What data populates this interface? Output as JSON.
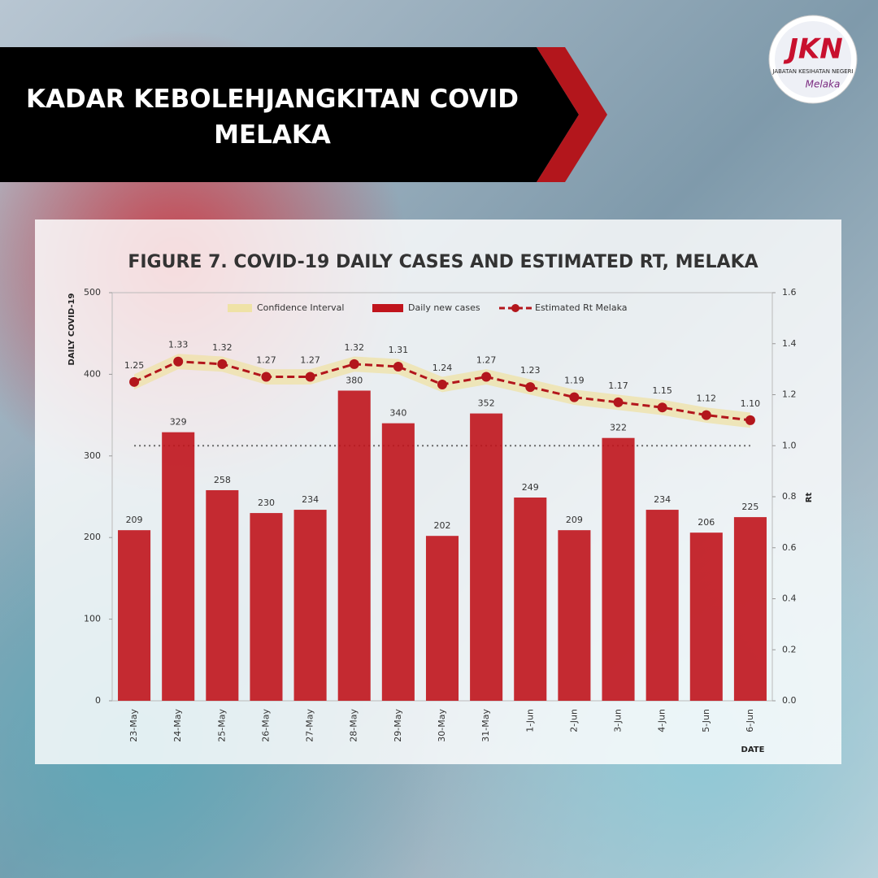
{
  "header": {
    "title": "KADAR KEBOLEHJANGKITAN COVID MELAKA"
  },
  "logo": {
    "mark": "JKN",
    "agency": "JABATAN KESIHATAN NEGERI",
    "state": "Melaka"
  },
  "chart_data": {
    "type": "bar",
    "title": "FIGURE 7. COVID-19 DAILY CASES AND ESTIMATED RT, MELAKA",
    "ylabel": "DAILY COVID-19",
    "y2label": "Rt",
    "xlabel": "DATE",
    "categories": [
      "23-May",
      "24-May",
      "25-May",
      "26-May",
      "27-May",
      "28-May",
      "29-May",
      "30-May",
      "31-May",
      "1-Jun",
      "2-Jun",
      "3-Jun",
      "4-Jun",
      "5-Jun",
      "6-Jun"
    ],
    "series": [
      {
        "name": "Confidence Interval",
        "type": "band",
        "axis": "y2",
        "color": "#efe2a6",
        "lower": [
          1.22,
          1.3,
          1.29,
          1.24,
          1.24,
          1.29,
          1.28,
          1.21,
          1.24,
          1.2,
          1.16,
          1.14,
          1.12,
          1.09,
          1.07
        ],
        "upper": [
          1.28,
          1.36,
          1.35,
          1.3,
          1.3,
          1.35,
          1.34,
          1.27,
          1.3,
          1.26,
          1.22,
          1.2,
          1.18,
          1.15,
          1.13
        ]
      },
      {
        "name": "Daily new cases",
        "type": "bar",
        "color": "#c0141c",
        "values": [
          209,
          329,
          258,
          230,
          234,
          380,
          340,
          202,
          352,
          249,
          209,
          322,
          234,
          206,
          225
        ]
      },
      {
        "name": "Estimated Rt Melaka",
        "type": "line",
        "axis": "y2",
        "color": "#b3161c",
        "values": [
          1.25,
          1.33,
          1.32,
          1.27,
          1.27,
          1.32,
          1.31,
          1.24,
          1.27,
          1.23,
          1.19,
          1.17,
          1.15,
          1.12,
          1.1
        ],
        "value_labels": [
          "1.25",
          "1.33",
          "1.32",
          "1.27",
          "1.27",
          "1.32",
          "1.31",
          "1.24",
          "1.27",
          "1.23",
          "1.19",
          "1.17",
          "1.15",
          "1.12",
          "1.10"
        ]
      }
    ],
    "ylim": [
      0,
      500
    ],
    "yticks": [
      0,
      100,
      200,
      300,
      400,
      500
    ],
    "y2lim": [
      0,
      1.6
    ],
    "y2ticks": [
      {
        "value": 0,
        "label": "0.0"
      },
      0.2,
      0.4,
      0.6,
      0.8,
      {
        "value": 1,
        "label": "1.0"
      },
      1.2,
      1.4,
      1.6
    ],
    "reference_line": {
      "value": 1,
      "axis": "y2"
    }
  }
}
